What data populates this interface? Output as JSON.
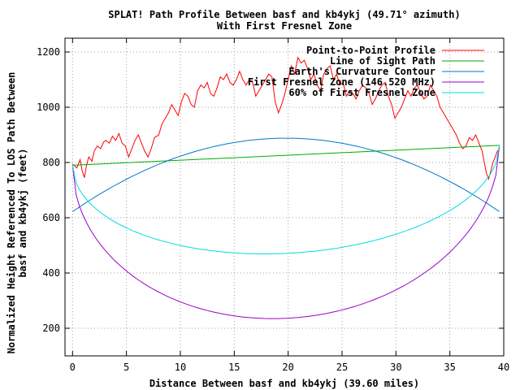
{
  "chart_data": {
    "type": "line",
    "title": "SPLAT! Path Profile Between basf and kb4ykj (49.71° azimuth)",
    "subtitle": "With First Fresnel Zone",
    "xlabel": "Distance Between basf and kb4ykj (39.60 miles)",
    "ylabel_line1": "Normalized Height Referenced To LOS Path Between",
    "ylabel_line2": "basf and kb4ykj (feet)",
    "xlim": [
      -0.7,
      40
    ],
    "ylim": [
      100,
      1250
    ],
    "x_ticks": [
      0,
      5,
      10,
      15,
      20,
      25,
      30,
      35,
      40
    ],
    "y_ticks": [
      200,
      400,
      600,
      800,
      1000,
      1200
    ],
    "grid": true,
    "legend_position": "top-right",
    "colors": {
      "profile": "#ff0000",
      "los": "#00aa00",
      "curvature": "#0077cc",
      "fresnel": "#9900cc",
      "fresnel60": "#00dddd"
    },
    "series": [
      {
        "name": "Point-to-Point Profile",
        "key": "profile",
        "x": [
          0,
          0.4,
          0.7,
          0.9,
          1.1,
          1.3,
          1.5,
          1.8,
          2,
          2.3,
          2.6,
          2.9,
          3.1,
          3.4,
          3.7,
          4,
          4.3,
          4.6,
          4.9,
          5.2,
          5.5,
          5.8,
          6.1,
          6.4,
          6.7,
          7,
          7.3,
          7.6,
          8,
          8.3,
          8.6,
          8.9,
          9.2,
          9.5,
          9.8,
          10.1,
          10.4,
          10.7,
          11,
          11.3,
          11.6,
          11.9,
          12.2,
          12.5,
          12.8,
          13.1,
          13.4,
          13.7,
          14,
          14.3,
          14.6,
          14.9,
          15.2,
          15.5,
          15.8,
          16.1,
          16.4,
          16.7,
          17,
          17.3,
          17.6,
          17.9,
          18.2,
          18.5,
          18.8,
          19.1,
          19.4,
          19.7,
          20,
          20.3,
          20.6,
          20.9,
          21.2,
          21.5,
          21.8,
          22.1,
          22.4,
          22.7,
          23,
          23.3,
          23.6,
          23.9,
          24.2,
          24.5,
          24.8,
          25.1,
          25.4,
          25.7,
          26,
          26.3,
          26.6,
          26.9,
          27.2,
          27.5,
          27.8,
          28.1,
          28.4,
          28.7,
          29,
          29.3,
          29.6,
          29.9,
          30.2,
          30.5,
          30.8,
          31.1,
          31.4,
          31.7,
          32,
          32.3,
          32.6,
          32.9,
          33.2,
          33.5,
          33.8,
          34.1,
          34.4,
          34.7,
          35,
          35.3,
          35.6,
          35.9,
          36.2,
          36.5,
          36.8,
          37.1,
          37.4,
          37.7,
          38,
          38.2,
          38.4,
          38.6,
          38.8,
          39,
          39.2,
          39.4,
          39.6
        ],
        "y": [
          795,
          780,
          810,
          770,
          745,
          790,
          820,
          805,
          840,
          860,
          850,
          875,
          880,
          870,
          895,
          880,
          905,
          870,
          860,
          820,
          850,
          880,
          900,
          870,
          840,
          820,
          850,
          890,
          900,
          940,
          960,
          980,
          1010,
          990,
          970,
          1020,
          1050,
          1040,
          1010,
          1000,
          1060,
          1080,
          1070,
          1090,
          1050,
          1040,
          1070,
          1110,
          1100,
          1120,
          1090,
          1080,
          1100,
          1130,
          1100,
          1080,
          1100,
          1090,
          1040,
          1060,
          1080,
          1100,
          1120,
          1110,
          1020,
          980,
          1010,
          1050,
          1100,
          1150,
          1120,
          1180,
          1160,
          1170,
          1140,
          1100,
          1120,
          1080,
          1060,
          1120,
          1140,
          1150,
          1100,
          1120,
          1080,
          1090,
          1040,
          1060,
          1050,
          1030,
          1060,
          1080,
          1070,
          1050,
          1010,
          1030,
          1060,
          1080,
          1090,
          1040,
          1010,
          960,
          980,
          1000,
          1030,
          1060,
          1040,
          1070,
          1080,
          1050,
          1030,
          1040,
          1080,
          1060,
          1040,
          1000,
          980,
          960,
          940,
          920,
          900,
          870,
          850,
          860,
          890,
          880,
          900,
          870,
          840,
          800,
          760,
          740,
          770,
          800,
          820,
          840,
          850
        ]
      },
      {
        "name": "Line of Sight Path",
        "key": "los",
        "x": [
          0,
          39.6
        ],
        "y": [
          790,
          862
        ]
      },
      {
        "name": "Earth's Curvature Contour",
        "key": "curvature",
        "shape": "parabola",
        "x": [
          0,
          19.8,
          39.6
        ],
        "y": [
          622,
          888,
          622
        ]
      },
      {
        "name": "First Fresnel Zone (146.520 MHz)",
        "key": "fresnel",
        "shape": "ellipse",
        "x": [
          0,
          19.8,
          39.6
        ],
        "y": [
          790,
          236,
          862
        ]
      },
      {
        "name": "60% of First Fresnel Zone",
        "key": "fresnel60",
        "shape": "ellipse",
        "x": [
          0,
          19.8,
          39.6
        ],
        "y": [
          790,
          471,
          862
        ]
      }
    ]
  }
}
